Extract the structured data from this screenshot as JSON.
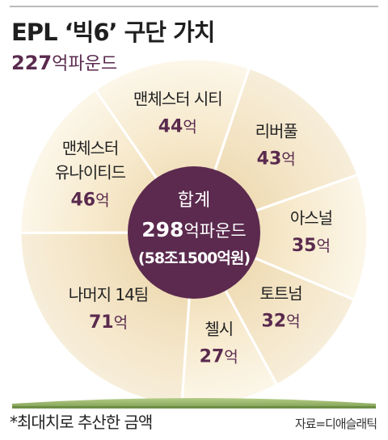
{
  "header": {
    "title": "EPL ‘빅6’ 구단 가치",
    "subtitle_value": "227",
    "subtitle_unit": "억파운드"
  },
  "center": {
    "label": "합계",
    "value": "298",
    "unit": "억파운드",
    "sub": "(58조1500억원)"
  },
  "footer": {
    "footnote": "*최대치로 추산한 금액",
    "source": "자료=디애슬래틱"
  },
  "colors": {
    "pie_light": "#fbf5e4",
    "pie_dark": "#f1deb7",
    "divider": "#ffffff",
    "center": "#5b2a4e",
    "accent": "#5a2a4e",
    "grass": "#87a85c"
  },
  "chart_data": {
    "type": "pie",
    "unit": "억",
    "total": 298,
    "slices": [
      {
        "label_lines": [
          "맨체스터 시티"
        ],
        "value": 44
      },
      {
        "label_lines": [
          "리버풀"
        ],
        "value": 43
      },
      {
        "label_lines": [
          "아스널"
        ],
        "value": 35
      },
      {
        "label_lines": [
          "토트넘"
        ],
        "value": 32
      },
      {
        "label_lines": [
          "첼시"
        ],
        "value": 27
      },
      {
        "label_lines": [
          "나머지 14팀"
        ],
        "value": 71
      },
      {
        "label_lines": [
          "맨체스터",
          "유나이티드"
        ],
        "value": 46
      }
    ]
  }
}
